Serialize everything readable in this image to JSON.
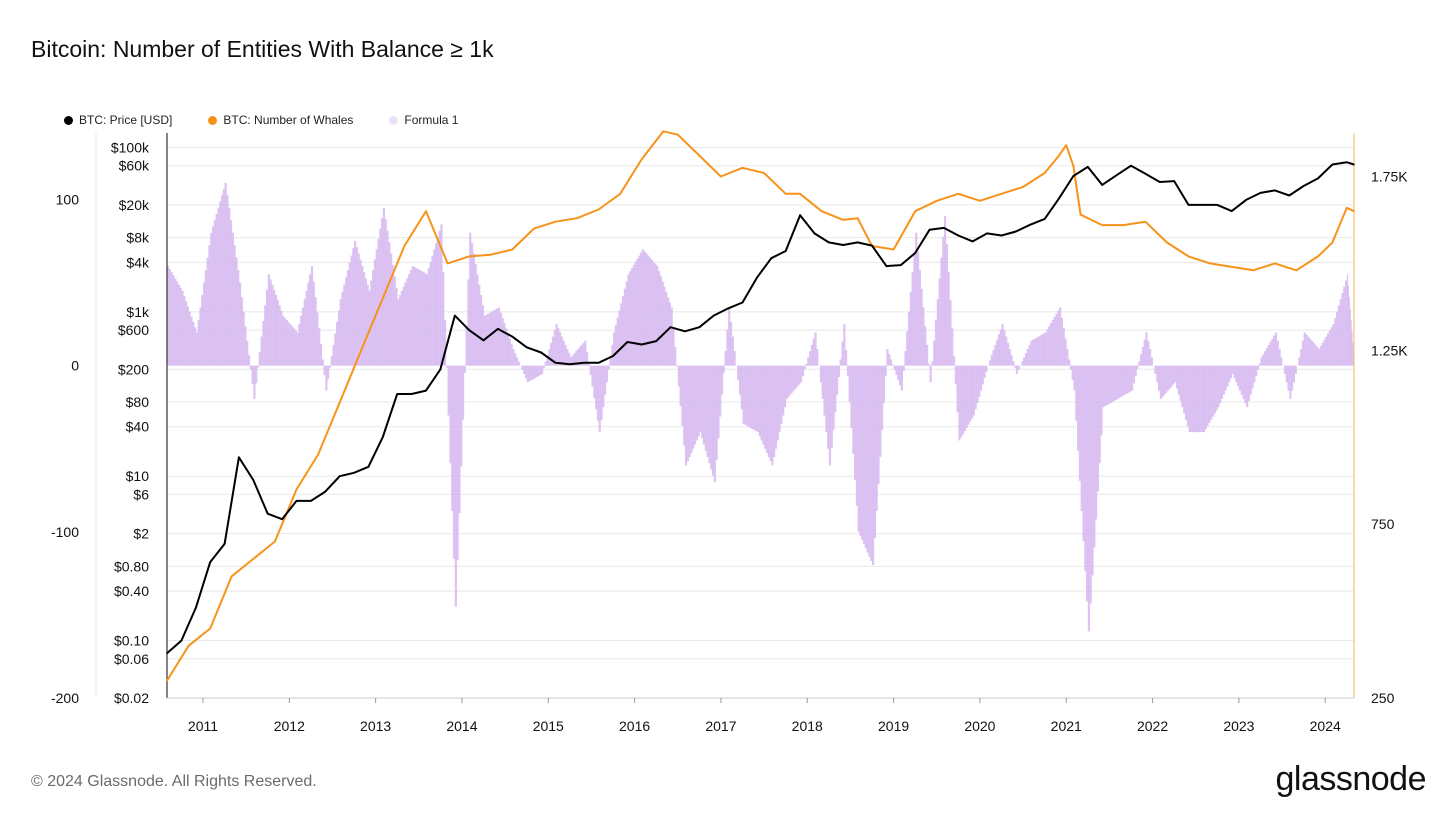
{
  "title": "Bitcoin: Number of Entities With Balance ≥ 1k",
  "footer": {
    "copyright": "© 2024 Glassnode. All Rights Reserved.",
    "logo": "glassnode"
  },
  "colors": {
    "price": "#000000",
    "whales": "#f7931a",
    "formula": "#d6b8f0",
    "formula_dot": "#ece0f8",
    "grid": "#e8e8e8",
    "axis": "#333333",
    "right_axis": "#f7c37a"
  },
  "chart_data": {
    "type": "line",
    "x_start": "2010-08",
    "x_end": "2024-05",
    "legend": [
      {
        "name": "BTC: Price [USD]",
        "color": "#000000"
      },
      {
        "name": "BTC: Number of Whales",
        "color": "#f7931a"
      },
      {
        "name": "Formula 1",
        "color": "#ece0f8"
      }
    ],
    "x_ticks": [
      "2011",
      "2012",
      "2013",
      "2014",
      "2015",
      "2016",
      "2017",
      "2018",
      "2019",
      "2020",
      "2021",
      "2022",
      "2023",
      "2024"
    ],
    "price_axis": {
      "scale": "log",
      "ticks": [
        "$100k",
        "$60k",
        "$20k",
        "$8k",
        "$4k",
        "$1k",
        "$600",
        "$200",
        "$80",
        "$40",
        "$10",
        "$6",
        "$2",
        "$0.80",
        "$0.40",
        "$0.10",
        "$0.06",
        "$0.02"
      ],
      "ylim": [
        0.02,
        150000
      ]
    },
    "formula_axis": {
      "ticks": [
        "100",
        "0",
        "-100",
        "-200"
      ],
      "ylim": [
        -200,
        140
      ]
    },
    "whales_axis": {
      "ticks": [
        "1.75K",
        "1.25K",
        "750",
        "250"
      ],
      "ylim": [
        250,
        1875
      ]
    },
    "series": [
      {
        "name": "BTC: Price [USD]",
        "axis": "price",
        "x": [
          "2010-08",
          "2010-10",
          "2010-12",
          "2011-02",
          "2011-04",
          "2011-06",
          "2011-08",
          "2011-10",
          "2011-12",
          "2012-02",
          "2012-04",
          "2012-06",
          "2012-08",
          "2012-10",
          "2012-12",
          "2013-02",
          "2013-04",
          "2013-06",
          "2013-08",
          "2013-10",
          "2013-12",
          "2014-02",
          "2014-04",
          "2014-06",
          "2014-08",
          "2014-10",
          "2014-12",
          "2015-02",
          "2015-04",
          "2015-06",
          "2015-08",
          "2015-10",
          "2015-12",
          "2016-02",
          "2016-04",
          "2016-06",
          "2016-08",
          "2016-10",
          "2016-12",
          "2017-02",
          "2017-04",
          "2017-06",
          "2017-08",
          "2017-10",
          "2017-12",
          "2018-02",
          "2018-04",
          "2018-06",
          "2018-08",
          "2018-10",
          "2018-12",
          "2019-02",
          "2019-04",
          "2019-06",
          "2019-08",
          "2019-10",
          "2019-12",
          "2020-02",
          "2020-04",
          "2020-06",
          "2020-08",
          "2020-10",
          "2020-12",
          "2021-02",
          "2021-04",
          "2021-06",
          "2021-08",
          "2021-10",
          "2021-12",
          "2022-02",
          "2022-04",
          "2022-06",
          "2022-08",
          "2022-10",
          "2022-12",
          "2023-02",
          "2023-04",
          "2023-06",
          "2023-08",
          "2023-10",
          "2023-12",
          "2024-02",
          "2024-04",
          "2024-05"
        ],
        "values": [
          0.07,
          0.1,
          0.25,
          0.9,
          1.5,
          17,
          9,
          3.5,
          3,
          5,
          5,
          6.5,
          10,
          11,
          13,
          30,
          100,
          100,
          110,
          200,
          900,
          600,
          450,
          620,
          500,
          370,
          320,
          240,
          230,
          240,
          240,
          290,
          430,
          400,
          440,
          650,
          580,
          650,
          900,
          1100,
          1300,
          2600,
          4500,
          5500,
          15000,
          9000,
          7000,
          6500,
          7000,
          6400,
          3600,
          3700,
          5200,
          10000,
          10500,
          8500,
          7200,
          9000,
          8500,
          9500,
          11500,
          13500,
          24000,
          45000,
          58000,
          35000,
          46000,
          60000,
          48000,
          38000,
          39000,
          20000,
          20000,
          20000,
          16800,
          23000,
          28000,
          30000,
          26000,
          34000,
          42000,
          62000,
          66000,
          62000
        ]
      },
      {
        "name": "BTC: Number of Whales",
        "axis": "whales",
        "x": [
          "2010-08",
          "2010-11",
          "2011-02",
          "2011-05",
          "2011-08",
          "2011-11",
          "2012-02",
          "2012-05",
          "2012-08",
          "2012-11",
          "2013-02",
          "2013-05",
          "2013-08",
          "2013-11",
          "2014-02",
          "2014-05",
          "2014-08",
          "2014-11",
          "2015-02",
          "2015-05",
          "2015-08",
          "2015-11",
          "2016-02",
          "2016-05",
          "2016-07",
          "2016-10",
          "2017-01",
          "2017-04",
          "2017-07",
          "2017-10",
          "2017-12",
          "2018-03",
          "2018-06",
          "2018-08",
          "2018-10",
          "2019-01",
          "2019-04",
          "2019-07",
          "2019-10",
          "2020-01",
          "2020-04",
          "2020-07",
          "2020-10",
          "2020-12",
          "2021-01",
          "2021-02",
          "2021-03",
          "2021-06",
          "2021-09",
          "2021-12",
          "2022-03",
          "2022-06",
          "2022-09",
          "2022-12",
          "2023-03",
          "2023-06",
          "2023-09",
          "2023-12",
          "2024-02",
          "2024-04",
          "2024-05"
        ],
        "values": [
          300,
          400,
          450,
          600,
          650,
          700,
          850,
          950,
          1100,
          1250,
          1400,
          1550,
          1650,
          1500,
          1520,
          1525,
          1540,
          1600,
          1620,
          1630,
          1655,
          1700,
          1800,
          1880,
          1870,
          1810,
          1750,
          1775,
          1760,
          1700,
          1700,
          1650,
          1625,
          1630,
          1550,
          1540,
          1650,
          1680,
          1700,
          1680,
          1700,
          1720,
          1760,
          1810,
          1840,
          1780,
          1640,
          1610,
          1610,
          1620,
          1560,
          1520,
          1500,
          1490,
          1480,
          1500,
          1480,
          1520,
          1560,
          1660,
          1650
        ]
      },
      {
        "name": "Formula 1",
        "axis": "formula",
        "x": [
          "2010-08",
          "2010-10",
          "2010-12",
          "2011-02",
          "2011-04",
          "2011-06",
          "2011-08",
          "2011-10",
          "2011-12",
          "2012-02",
          "2012-04",
          "2012-06",
          "2012-08",
          "2012-10",
          "2012-12",
          "2013-02",
          "2013-04",
          "2013-06",
          "2013-08",
          "2013-10",
          "2013-12",
          "2014-02",
          "2014-04",
          "2014-06",
          "2014-08",
          "2014-10",
          "2014-12",
          "2015-02",
          "2015-04",
          "2015-06",
          "2015-08",
          "2015-10",
          "2015-12",
          "2016-02",
          "2016-04",
          "2016-06",
          "2016-08",
          "2016-10",
          "2016-12",
          "2017-02",
          "2017-04",
          "2017-06",
          "2017-08",
          "2017-10",
          "2017-12",
          "2018-02",
          "2018-04",
          "2018-06",
          "2018-08",
          "2018-10",
          "2018-12",
          "2019-02",
          "2019-04",
          "2019-06",
          "2019-08",
          "2019-10",
          "2019-12",
          "2020-02",
          "2020-04",
          "2020-06",
          "2020-08",
          "2020-10",
          "2020-12",
          "2021-02",
          "2021-04",
          "2021-06",
          "2021-08",
          "2021-10",
          "2021-12",
          "2022-02",
          "2022-04",
          "2022-06",
          "2022-08",
          "2022-10",
          "2022-12",
          "2023-02",
          "2023-04",
          "2023-06",
          "2023-08",
          "2023-10",
          "2023-12",
          "2024-02",
          "2024-04",
          "2024-05"
        ],
        "values": [
          60,
          45,
          20,
          80,
          110,
          50,
          -20,
          55,
          30,
          20,
          60,
          -15,
          40,
          75,
          45,
          95,
          40,
          60,
          55,
          85,
          -145,
          80,
          30,
          35,
          10,
          -10,
          -5,
          25,
          5,
          15,
          -40,
          20,
          55,
          70,
          60,
          35,
          -60,
          -40,
          -70,
          35,
          -35,
          -40,
          -60,
          -20,
          -10,
          20,
          -60,
          25,
          -100,
          -120,
          10,
          -15,
          80,
          -10,
          90,
          -45,
          -30,
          0,
          25,
          -5,
          15,
          20,
          35,
          -15,
          -160,
          -25,
          -20,
          -15,
          20,
          -20,
          -10,
          -40,
          -40,
          -25,
          -5,
          -25,
          5,
          20,
          -20,
          20,
          10,
          25,
          55,
          0
        ]
      }
    ]
  }
}
